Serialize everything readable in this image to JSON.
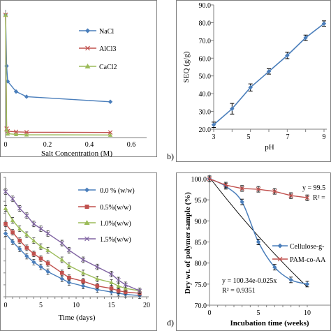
{
  "chart_data": [
    {
      "id": "a",
      "type": "line",
      "panel_label": "",
      "xlabel": "Salt Concentration (M)",
      "ylabel": "",
      "xlim": [
        0,
        0.6
      ],
      "ylim": [
        0,
        100
      ],
      "xticks": [
        "0",
        "0.2",
        "0.4",
        "0.6"
      ],
      "yticks": [],
      "grid": false,
      "legend_position": "top-right",
      "series": [
        {
          "name": "NaCl",
          "color": "#4a7ebb",
          "marker": "diamond",
          "x": [
            0,
            0.005,
            0.01,
            0.05,
            0.1,
            0.5
          ],
          "y": [
            96,
            56,
            44,
            36,
            32,
            28
          ]
        },
        {
          "name": "AlCl3",
          "color": "#c0504d",
          "marker": "cross",
          "x": [
            0,
            0.005,
            0.01,
            0.05,
            0.1,
            0.5
          ],
          "y": [
            96,
            7,
            5,
            4.5,
            4.2,
            4
          ]
        },
        {
          "name": "CaCl2",
          "color": "#9bbb59",
          "marker": "triangle",
          "x": [
            0,
            0.005,
            0.01,
            0.05,
            0.1,
            0.5
          ],
          "y": [
            96,
            6,
            3,
            2.5,
            2.2,
            2
          ]
        }
      ]
    },
    {
      "id": "b",
      "type": "line",
      "panel_label": "b)",
      "xlabel": "pH",
      "ylabel": "SEQ (g/g)",
      "xlim": [
        3,
        9
      ],
      "ylim": [
        20,
        90
      ],
      "xticks": [
        "3",
        "5",
        "7",
        "9"
      ],
      "yticks": [
        "20.0",
        "30.0",
        "40.0",
        "50.0",
        "60.0",
        "70.0",
        "80.0",
        "90.0"
      ],
      "grid": false,
      "series": [
        {
          "name": "",
          "color": "#4a7ebb",
          "marker": "diamond",
          "x": [
            3,
            4,
            5,
            6,
            7,
            8,
            9
          ],
          "y": [
            22.5,
            31.5,
            43.5,
            52.5,
            61.5,
            71.5,
            79.5
          ],
          "err": [
            1.5,
            3,
            2,
            1.5,
            1.8,
            1.5,
            1.5
          ]
        }
      ]
    },
    {
      "id": "c",
      "type": "line",
      "panel_label": "",
      "xlabel": "Time (days)",
      "ylabel": "",
      "xlim": [
        0,
        20
      ],
      "ylim": [
        0,
        100
      ],
      "xticks": [
        "0",
        "5",
        "10",
        "15",
        "20"
      ],
      "yticks": [],
      "grid": false,
      "legend_position": "top-right",
      "series": [
        {
          "name": "0.0 % (w/w)",
          "color": "#4a7ebb",
          "marker": "diamond",
          "x": [
            0,
            1,
            2,
            3,
            4,
            5,
            6,
            8,
            9,
            11,
            13,
            15,
            16,
            17,
            19
          ],
          "y": [
            53,
            46,
            40,
            34,
            29,
            25,
            21,
            15,
            12,
            9,
            6,
            4,
            3,
            2,
            1
          ]
        },
        {
          "name": "0.5%(w/w)",
          "color": "#c0504d",
          "marker": "square",
          "x": [
            0,
            1,
            2,
            3,
            4,
            5,
            6,
            8,
            9,
            11,
            13,
            15,
            16,
            17,
            19
          ],
          "y": [
            61,
            54,
            47,
            41,
            36,
            32,
            28,
            20,
            16,
            13,
            9,
            7,
            5,
            4,
            3
          ]
        },
        {
          "name": "1.0%(w/w)",
          "color": "#9bbb59",
          "marker": "triangle",
          "x": [
            0,
            1,
            2,
            3,
            4,
            5,
            6,
            8,
            9,
            11,
            13,
            15,
            16,
            17,
            19
          ],
          "y": [
            74,
            64,
            57,
            52,
            47,
            42,
            39,
            31,
            26,
            20,
            15,
            12,
            9,
            7,
            5
          ]
        },
        {
          "name": "1.5%(w/w)",
          "color": "#8064a2",
          "marker": "cross",
          "x": [
            0,
            1,
            2,
            3,
            4,
            5,
            6,
            8,
            9,
            11,
            13,
            15,
            16,
            17,
            19
          ],
          "y": [
            88,
            82,
            74,
            68,
            61,
            57,
            53,
            45,
            39,
            31,
            25,
            19,
            14,
            10,
            5
          ]
        }
      ]
    },
    {
      "id": "d",
      "type": "line",
      "panel_label": "d)",
      "xlabel": "Incubation time (weeks)",
      "ylabel": "Dry wt. of polymer sample (%)",
      "xlim": [
        0,
        12
      ],
      "ylim": [
        70,
        100
      ],
      "xticks": [
        "0",
        "5",
        "10"
      ],
      "yticks": [
        "70.0",
        "75.0",
        "80.0",
        "85.0",
        "90.0",
        "95.0",
        "100.0"
      ],
      "grid": false,
      "legend_position": "center-right",
      "series": [
        {
          "name": "Cellulose-g-",
          "color": "#4a7ebb",
          "marker": "diamond",
          "x": [
            0,
            2,
            4,
            6,
            8,
            10,
            12
          ],
          "y": [
            100,
            98.2,
            94.5,
            85,
            79,
            76,
            75
          ]
        },
        {
          "name": "PAM-co-AA",
          "color": "#c0504d",
          "marker": "cross",
          "x": [
            0,
            2,
            4,
            6,
            8,
            10,
            12
          ],
          "y": [
            100,
            98.5,
            97.7,
            97.5,
            97,
            96,
            95.5
          ]
        }
      ],
      "annotations": [
        {
          "text": "y = 99.5"
        },
        {
          "text": "R² ="
        },
        {
          "text": "y = 100.34e-0.025x"
        },
        {
          "text": "R² = 0.9351"
        }
      ]
    }
  ]
}
